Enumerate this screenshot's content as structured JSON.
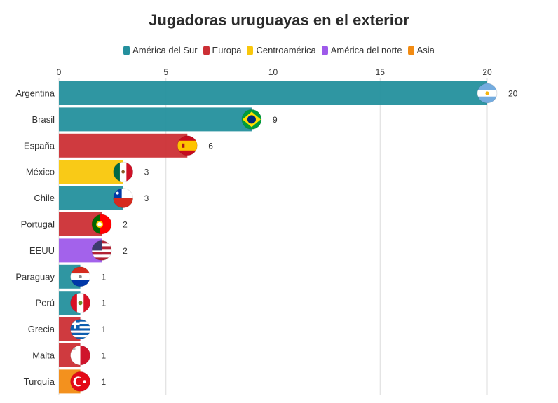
{
  "chart_data": {
    "type": "bar",
    "orientation": "horizontal",
    "title": "Jugadoras uruguayas en el exterior",
    "xlabel": "",
    "ylabel": "",
    "xlim": [
      0,
      20
    ],
    "x_ticks": [
      "0",
      "5",
      "10",
      "15",
      "20"
    ],
    "grid": true,
    "legend_position": "top-center",
    "legend": [
      {
        "name": "América del Sur",
        "color": "#24909d"
      },
      {
        "name": "Europa",
        "color": "#cc2f35"
      },
      {
        "name": "Centroamérica",
        "color": "#f9c70b"
      },
      {
        "name": "América del norte",
        "color": "#9e5aea"
      },
      {
        "name": "Asia",
        "color": "#f28b12"
      }
    ],
    "categories": [
      "Argentina",
      "Brasil",
      "España",
      "México",
      "Chile",
      "Portugal",
      "EEUU",
      "Paraguay",
      "Perú",
      "Grecia",
      "Malta",
      "Turquía"
    ],
    "values": [
      20,
      9,
      6,
      3,
      3,
      2,
      2,
      1,
      1,
      1,
      1,
      1
    ],
    "value_labels": [
      "20",
      "9",
      "6",
      "3",
      "3",
      "2",
      "2",
      "1",
      "1",
      "1",
      "1",
      "1"
    ],
    "groups": [
      "América del Sur",
      "América del Sur",
      "Europa",
      "Centroamérica",
      "América del Sur",
      "Europa",
      "América del norte",
      "América del Sur",
      "América del Sur",
      "Europa",
      "Europa",
      "Asia"
    ],
    "flag_icons": [
      "flag-argentina-icon",
      "flag-brazil-icon",
      "flag-spain-icon",
      "flag-mexico-icon",
      "flag-chile-icon",
      "flag-portugal-icon",
      "flag-usa-icon",
      "flag-paraguay-icon",
      "flag-peru-icon",
      "flag-greece-icon",
      "flag-malta-icon",
      "flag-turkey-icon"
    ]
  }
}
